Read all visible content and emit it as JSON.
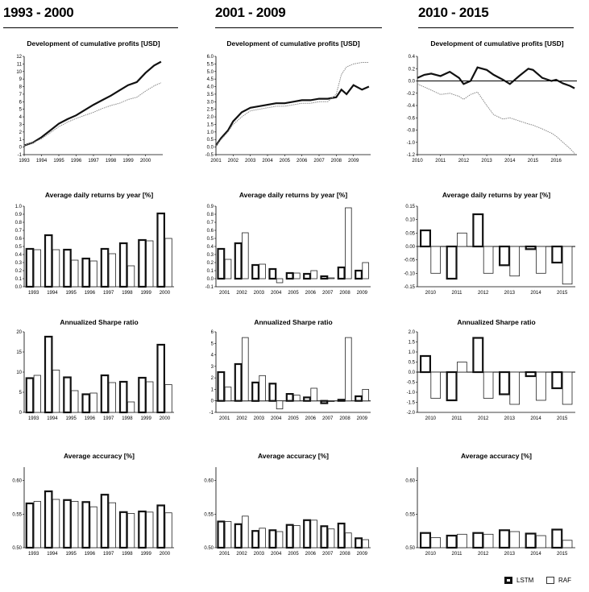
{
  "headers": [
    "1993 - 2000",
    "2001 - 2009",
    "2010 - 2015"
  ],
  "legend": {
    "items": [
      {
        "label": "LSTM",
        "color": "#000000"
      },
      {
        "label": "RAF",
        "color": "#ffffff"
      }
    ]
  },
  "colors": {
    "lstm": "#111111",
    "raf": "#ffffff",
    "raf_line": "#888888",
    "border": "#000000"
  },
  "chart_data": [
    {
      "type": "line",
      "period": "1993 - 2000",
      "title": "Development of cumulative profits [USD]",
      "ylim": [
        -1,
        12
      ],
      "yticks": [
        -1,
        0,
        1,
        2,
        3,
        4,
        5,
        6,
        7,
        8,
        9,
        10,
        11,
        12
      ],
      "ytick_labels": [
        "-1",
        "0",
        "1",
        "2",
        "3",
        "4",
        "5",
        "6",
        "7",
        "8",
        "9",
        "10",
        "11",
        "12"
      ],
      "xlim": [
        1993,
        2001
      ],
      "xticks": [
        1993,
        1994,
        1995,
        1996,
        1997,
        1998,
        1999,
        2000
      ],
      "xtick_labels": [
        "1993",
        "1994",
        "1995",
        "1996",
        "1997",
        "1998",
        "1999",
        "2000"
      ],
      "series": [
        {
          "name": "LSTM",
          "x": [
            1993,
            1993.5,
            1994,
            1994.5,
            1995,
            1995.5,
            1996,
            1996.5,
            1997,
            1997.5,
            1998,
            1998.5,
            1999,
            1999.5,
            2000,
            2000.5,
            2000.9
          ],
          "y": [
            0.2,
            0.6,
            1.3,
            2.2,
            3.1,
            3.7,
            4.2,
            4.9,
            5.6,
            6.2,
            6.8,
            7.5,
            8.2,
            8.6,
            9.8,
            10.8,
            11.3
          ]
        },
        {
          "name": "RAF",
          "x": [
            1993,
            1993.5,
            1994,
            1994.5,
            1995,
            1995.5,
            1996,
            1996.5,
            1997,
            1997.5,
            1998,
            1998.5,
            1999,
            1999.5,
            2000,
            2000.5,
            2000.9
          ],
          "y": [
            0.2,
            0.6,
            1.1,
            1.9,
            2.7,
            3.3,
            3.8,
            4.2,
            4.6,
            5.1,
            5.5,
            5.8,
            6.3,
            6.6,
            7.4,
            8.1,
            8.5
          ]
        }
      ]
    },
    {
      "type": "line",
      "period": "2001 - 2009",
      "title": "Development of cumulative profits [USD]",
      "ylim": [
        -0.5,
        6.0
      ],
      "yticks": [
        -0.5,
        0,
        0.5,
        1,
        1.5,
        2,
        2.5,
        3,
        3.5,
        4,
        4.5,
        5,
        5.5,
        6
      ],
      "ytick_labels": [
        "-0.5",
        "0.0",
        "0.5",
        "1.0",
        "1.5",
        "2.0",
        "2.5",
        "3.0",
        "3.5",
        "4.0",
        "4.5",
        "5.0",
        "5.5",
        "6.0"
      ],
      "xlim": [
        2001,
        2010
      ],
      "xticks": [
        2001,
        2002,
        2003,
        2004,
        2005,
        2006,
        2007,
        2008,
        2009
      ],
      "xtick_labels": [
        "2001",
        "2002",
        "2003",
        "2004",
        "2005",
        "2006",
        "2007",
        "2008",
        "2009"
      ],
      "series": [
        {
          "name": "LSTM",
          "x": [
            2001,
            2001.3,
            2001.7,
            2002,
            2002.5,
            2003,
            2003.5,
            2004,
            2004.5,
            2005,
            2005.5,
            2006,
            2006.5,
            2007,
            2007.5,
            2008,
            2008.3,
            2008.6,
            2009,
            2009.5,
            2009.9
          ],
          "y": [
            0.1,
            0.6,
            1.1,
            1.7,
            2.3,
            2.6,
            2.7,
            2.8,
            2.9,
            2.9,
            3.0,
            3.1,
            3.1,
            3.2,
            3.2,
            3.3,
            3.8,
            3.5,
            4.1,
            3.8,
            4.0
          ]
        },
        {
          "name": "RAF",
          "x": [
            2001,
            2001.3,
            2001.7,
            2002,
            2002.5,
            2003,
            2003.5,
            2004,
            2004.5,
            2005,
            2005.5,
            2006,
            2006.5,
            2007,
            2007.5,
            2008,
            2008.3,
            2008.6,
            2009,
            2009.5,
            2009.9
          ],
          "y": [
            0.1,
            0.5,
            1.0,
            1.5,
            2.0,
            2.4,
            2.5,
            2.6,
            2.7,
            2.7,
            2.8,
            2.9,
            2.9,
            3.0,
            3.0,
            3.5,
            4.8,
            5.3,
            5.5,
            5.6,
            5.6
          ]
        }
      ]
    },
    {
      "type": "line",
      "period": "2010 - 2015",
      "title": "Development of cumulative profits [USD]",
      "ylim": [
        -1.2,
        0.4
      ],
      "yticks": [
        -1.2,
        -1.0,
        -0.8,
        -0.6,
        -0.4,
        -0.2,
        0.0,
        0.2,
        0.4
      ],
      "ytick_labels": [
        "-1.2",
        "-1.0",
        "-0.8",
        "-0.6",
        "-0.4",
        "-0.2",
        "0.0",
        "0.2",
        "0.4"
      ],
      "xlim": [
        2010,
        2016.9
      ],
      "xticks": [
        2010,
        2011,
        2012,
        2013,
        2014,
        2015,
        2016
      ],
      "xtick_labels": [
        "2010",
        "2011",
        "2012",
        "2013",
        "2014",
        "2015",
        "2016"
      ],
      "zero_line": true,
      "series": [
        {
          "name": "LSTM",
          "x": [
            2010,
            2010.3,
            2010.6,
            2011,
            2011.4,
            2011.8,
            2012,
            2012.3,
            2012.6,
            2013,
            2013.3,
            2013.7,
            2014,
            2014.4,
            2014.8,
            2015,
            2015.4,
            2015.8,
            2016,
            2016.3,
            2016.6,
            2016.8
          ],
          "y": [
            0.05,
            0.1,
            0.12,
            0.08,
            0.15,
            0.05,
            -0.05,
            0.0,
            0.22,
            0.18,
            0.1,
            0.02,
            -0.05,
            0.08,
            0.2,
            0.18,
            0.05,
            0.0,
            0.02,
            -0.04,
            -0.08,
            -0.12
          ]
        },
        {
          "name": "RAF",
          "x": [
            2010,
            2010.3,
            2010.6,
            2011,
            2011.4,
            2011.8,
            2012,
            2012.3,
            2012.6,
            2013,
            2013.3,
            2013.7,
            2014,
            2014.4,
            2014.8,
            2015,
            2015.4,
            2015.8,
            2016,
            2016.3,
            2016.6,
            2016.8
          ],
          "y": [
            -0.05,
            -0.1,
            -0.15,
            -0.22,
            -0.2,
            -0.25,
            -0.3,
            -0.22,
            -0.18,
            -0.4,
            -0.55,
            -0.62,
            -0.6,
            -0.65,
            -0.7,
            -0.72,
            -0.78,
            -0.85,
            -0.9,
            -1.0,
            -1.1,
            -1.18
          ]
        }
      ]
    },
    {
      "type": "bar",
      "period": "1993 - 2000",
      "title": "Average daily returns by year [%]",
      "categories": [
        "1993",
        "1994",
        "1995",
        "1996",
        "1997",
        "1998",
        "1999",
        "2000"
      ],
      "ylim": [
        0.0,
        1.0
      ],
      "yticks": [
        0,
        0.1,
        0.2,
        0.3,
        0.4,
        0.5,
        0.6,
        0.7,
        0.8,
        0.9,
        1.0
      ],
      "ytick_labels": [
        "0.0",
        "0.1",
        "0.2",
        "0.3",
        "0.4",
        "0.5",
        "0.6",
        "0.7",
        "0.8",
        "0.9",
        "1.0"
      ],
      "series": [
        {
          "name": "LSTM",
          "values": [
            0.47,
            0.64,
            0.46,
            0.35,
            0.47,
            0.54,
            0.58,
            0.91
          ]
        },
        {
          "name": "RAF",
          "values": [
            0.46,
            0.46,
            0.33,
            0.32,
            0.41,
            0.26,
            0.57,
            0.6
          ]
        }
      ]
    },
    {
      "type": "bar",
      "period": "2001 - 2009",
      "title": "Average daily returns by year [%]",
      "categories": [
        "2001",
        "2002",
        "2003",
        "2004",
        "2005",
        "2006",
        "2007",
        "2008",
        "2009"
      ],
      "ylim": [
        -0.1,
        0.9
      ],
      "yticks": [
        -0.1,
        0,
        0.1,
        0.2,
        0.3,
        0.4,
        0.5,
        0.6,
        0.7,
        0.8,
        0.9
      ],
      "ytick_labels": [
        "-0.1",
        "0.0",
        "0.1",
        "0.2",
        "0.3",
        "0.4",
        "0.5",
        "0.6",
        "0.7",
        "0.8",
        "0.9"
      ],
      "series": [
        {
          "name": "LSTM",
          "values": [
            0.37,
            0.44,
            0.17,
            0.12,
            0.07,
            0.06,
            0.03,
            0.14,
            0.1
          ]
        },
        {
          "name": "RAF",
          "values": [
            0.24,
            0.57,
            0.18,
            -0.05,
            0.07,
            0.1,
            0.01,
            0.88,
            0.2
          ]
        }
      ]
    },
    {
      "type": "bar",
      "period": "2010 - 2015",
      "title": "Average daily returns by year [%]",
      "categories": [
        "2010",
        "2011",
        "2012",
        "2013",
        "2014",
        "2015"
      ],
      "ylim": [
        -0.15,
        0.15
      ],
      "yticks": [
        -0.15,
        -0.1,
        -0.05,
        0.0,
        0.05,
        0.1,
        0.15
      ],
      "ytick_labels": [
        "-0.15",
        "-0.10",
        "-0.05",
        "0.00",
        "0.05",
        "0.10",
        "0.15"
      ],
      "zero_line": true,
      "series": [
        {
          "name": "LSTM",
          "values": [
            0.06,
            -0.12,
            0.12,
            -0.07,
            -0.01,
            -0.06
          ]
        },
        {
          "name": "RAF",
          "values": [
            -0.1,
            0.05,
            -0.1,
            -0.11,
            -0.1,
            -0.14
          ]
        }
      ]
    },
    {
      "type": "bar",
      "period": "1993 - 2000",
      "title": "Annualized Sharpe ratio",
      "categories": [
        "1993",
        "1994",
        "1995",
        "1996",
        "1997",
        "1998",
        "1999",
        "2000"
      ],
      "ylim": [
        0,
        20
      ],
      "yticks": [
        0,
        5,
        10,
        15,
        20
      ],
      "ytick_labels": [
        "0",
        "5",
        "10",
        "15",
        "20"
      ],
      "series": [
        {
          "name": "LSTM",
          "values": [
            8.5,
            18.8,
            8.7,
            4.5,
            9.2,
            7.6,
            8.6,
            16.8
          ]
        },
        {
          "name": "RAF",
          "values": [
            9.2,
            10.5,
            5.4,
            4.8,
            7.4,
            2.6,
            7.6,
            6.9
          ]
        }
      ]
    },
    {
      "type": "bar",
      "period": "2001 - 2009",
      "title": "Annualized Sharpe ratio",
      "categories": [
        "2001",
        "2002",
        "2003",
        "2004",
        "2005",
        "2006",
        "2007",
        "2008",
        "2009"
      ],
      "ylim": [
        -1,
        6
      ],
      "yticks": [
        -1,
        0,
        1,
        2,
        3,
        4,
        5,
        6
      ],
      "ytick_labels": [
        "-1",
        "0",
        "1",
        "2",
        "3",
        "4",
        "5",
        "6"
      ],
      "zero_line": true,
      "series": [
        {
          "name": "LSTM",
          "values": [
            2.5,
            3.2,
            1.6,
            1.5,
            0.6,
            0.3,
            -0.2,
            0.1,
            0.4
          ]
        },
        {
          "name": "RAF",
          "values": [
            1.2,
            5.5,
            2.2,
            -0.7,
            0.5,
            1.1,
            0.0,
            5.5,
            1.0
          ]
        }
      ]
    },
    {
      "type": "bar",
      "period": "2010 - 2015",
      "title": "Annualized Sharpe ratio",
      "categories": [
        "2010",
        "2011",
        "2012",
        "2013",
        "2014",
        "2015"
      ],
      "ylim": [
        -2.0,
        2.0
      ],
      "yticks": [
        -2.0,
        -1.5,
        -1.0,
        -0.5,
        0.0,
        0.5,
        1.0,
        1.5,
        2.0
      ],
      "ytick_labels": [
        "-2.0",
        "-1.5",
        "-1.0",
        "-0.5",
        "0.0",
        "0.5",
        "1.0",
        "1.5",
        "2.0"
      ],
      "zero_line": true,
      "series": [
        {
          "name": "LSTM",
          "values": [
            0.8,
            -1.4,
            1.7,
            -1.1,
            -0.2,
            -0.8
          ]
        },
        {
          "name": "RAF",
          "values": [
            -1.3,
            0.5,
            -1.3,
            -1.6,
            -1.4,
            -1.6
          ]
        }
      ]
    },
    {
      "type": "bar",
      "period": "1993 - 2000",
      "title": "Average accuracy [%]",
      "categories": [
        "1993",
        "1994",
        "1995",
        "1996",
        "1997",
        "1998",
        "1999",
        "2000"
      ],
      "ylim": [
        0.5,
        0.62
      ],
      "yticks": [
        0.5,
        0.55,
        0.6
      ],
      "ytick_labels": [
        "0.50",
        "0.55",
        "0.60"
      ],
      "series": [
        {
          "name": "LSTM",
          "values": [
            0.566,
            0.584,
            0.571,
            0.568,
            0.579,
            0.553,
            0.554,
            0.563
          ]
        },
        {
          "name": "RAF",
          "values": [
            0.569,
            0.572,
            0.569,
            0.561,
            0.567,
            0.551,
            0.553,
            0.552
          ]
        }
      ]
    },
    {
      "type": "bar",
      "period": "2001 - 2009",
      "title": "Average accuracy [%]",
      "categories": [
        "2001",
        "2002",
        "2003",
        "2004",
        "2005",
        "2006",
        "2007",
        "2008",
        "2009"
      ],
      "ylim": [
        0.5,
        0.62
      ],
      "yticks": [
        0.5,
        0.55,
        0.6
      ],
      "ytick_labels": [
        "0.50",
        "0.55",
        "0.60"
      ],
      "series": [
        {
          "name": "LSTM",
          "values": [
            0.539,
            0.535,
            0.525,
            0.526,
            0.534,
            0.541,
            0.532,
            0.536,
            0.514
          ]
        },
        {
          "name": "RAF",
          "values": [
            0.539,
            0.547,
            0.529,
            0.524,
            0.533,
            0.541,
            0.528,
            0.522,
            0.512
          ]
        }
      ]
    },
    {
      "type": "bar",
      "period": "2010 - 2015",
      "title": "Average accuracy [%]",
      "categories": [
        "2010",
        "2011",
        "2012",
        "2013",
        "2014",
        "2015"
      ],
      "ylim": [
        0.5,
        0.62
      ],
      "yticks": [
        0.5,
        0.55,
        0.6
      ],
      "ytick_labels": [
        "0.50",
        "0.55",
        "0.60"
      ],
      "series": [
        {
          "name": "LSTM",
          "values": [
            0.522,
            0.518,
            0.522,
            0.526,
            0.521,
            0.527
          ]
        },
        {
          "name": "RAF",
          "values": [
            0.515,
            0.52,
            0.52,
            0.524,
            0.518,
            0.511
          ]
        }
      ]
    }
  ]
}
